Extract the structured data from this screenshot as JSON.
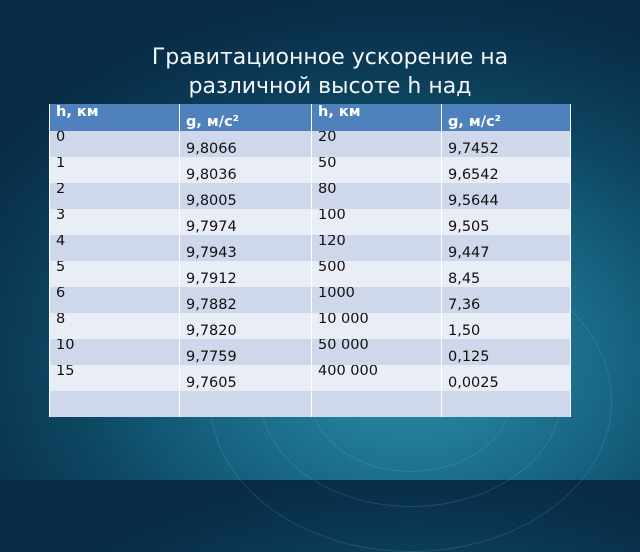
{
  "title_lines": [
    "Гравитационное ускорение на",
    "различной высоте h над"
  ],
  "table": {
    "headers": [
      "h, км",
      "g, м/с²",
      "h, км",
      "g, м/с²"
    ],
    "rows": [
      [
        "0",
        "9,8066",
        "20",
        "9,7452"
      ],
      [
        "1",
        "9,8036",
        "50",
        "9,6542"
      ],
      [
        "2",
        "9,8005",
        "80",
        "9,5644"
      ],
      [
        "3",
        "9,7974",
        "100",
        "9,505"
      ],
      [
        "4",
        "9,7943",
        "120",
        "9,447"
      ],
      [
        "5",
        "9,7912",
        "500",
        "8,45"
      ],
      [
        "6",
        "9,7882",
        "1000",
        "7,36"
      ],
      [
        "8",
        "9,7820",
        "10 000",
        "1,50"
      ],
      [
        "10",
        "9,7759",
        "50 000",
        "0,125"
      ],
      [
        "15",
        "9,7605",
        "400 000",
        "0,0025"
      ],
      [
        "",
        "",
        "",
        ""
      ]
    ]
  },
  "colors": {
    "header_bg": "#4f81bd",
    "row_dark": "#cfd7ea",
    "row_light": "#e9edf5"
  }
}
